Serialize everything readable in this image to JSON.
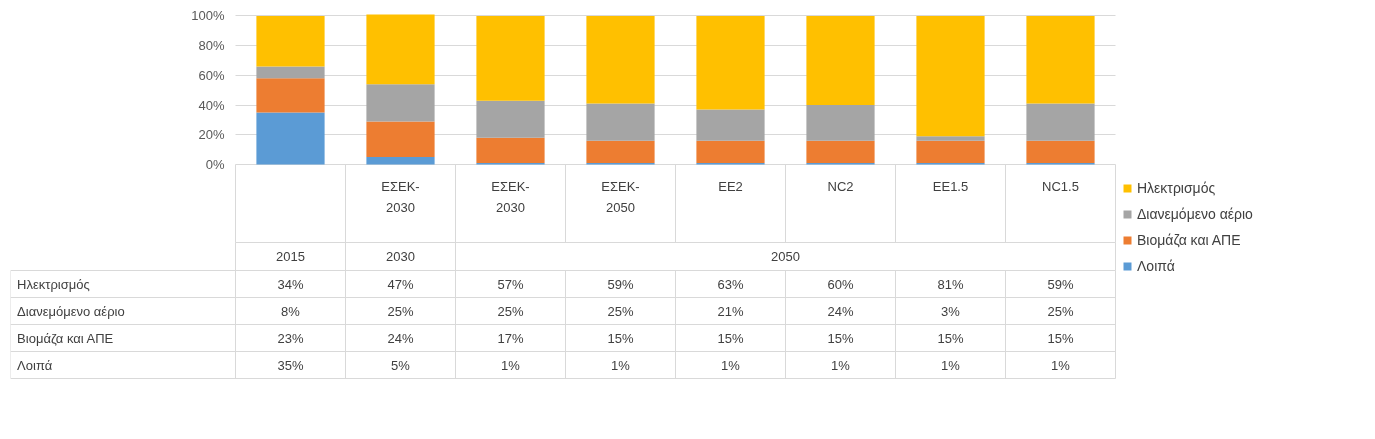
{
  "chart_data": {
    "type": "bar",
    "stacked": true,
    "categories": [
      null,
      "ΕΣΕΚ-\n2030",
      "ΕΣΕΚ-\n2030",
      "ΕΣΕΚ-\n2050",
      "EE2",
      "NC2",
      "EE1.5",
      "NC1.5"
    ],
    "annotations": [
      "2015",
      "2030",
      "2050"
    ],
    "ylim": [
      0,
      101
    ],
    "yticks": [
      {
        "value": 0,
        "label": "0%"
      },
      {
        "value": 20,
        "label": "20%"
      },
      {
        "value": 40,
        "label": "40%"
      },
      {
        "value": 60,
        "label": "60%"
      },
      {
        "value": 80,
        "label": "80%"
      },
      {
        "value": 100,
        "label": "100%"
      }
    ],
    "grid": "y",
    "legend": "right",
    "series": [
      {
        "name": "Λοιπά",
        "color": "#5b9bd5",
        "values": [
          35,
          5,
          1,
          1,
          1,
          1,
          1,
          1
        ],
        "value_labels": [
          "35%",
          "5%",
          "1%",
          "1%",
          "1%",
          "1%",
          "1%",
          "1%"
        ]
      },
      {
        "name": "Βιομάζα και ΑΠΕ",
        "color": "#ed7d31",
        "values": [
          23,
          24,
          17,
          15,
          15,
          15,
          15,
          15
        ],
        "value_labels": [
          "23%",
          "24%",
          "17%",
          "15%",
          "15%",
          "15%",
          "15%",
          "15%"
        ]
      },
      {
        "name": "Διανεμόμενο αέριο",
        "color": "#a5a5a5",
        "values": [
          8,
          25,
          25,
          25,
          21,
          24,
          3,
          25
        ],
        "value_labels": [
          "8%",
          "25%",
          "25%",
          "25%",
          "21%",
          "24%",
          "3%",
          "25%"
        ]
      },
      {
        "name": "Ηλεκτρισμός",
        "color": "#ffc000",
        "values": [
          34,
          47,
          57,
          59,
          63,
          60,
          81,
          59
        ],
        "value_labels": [
          "34%",
          "47%",
          "57%",
          "59%",
          "63%",
          "60%",
          "81%",
          "59%"
        ]
      }
    ]
  }
}
